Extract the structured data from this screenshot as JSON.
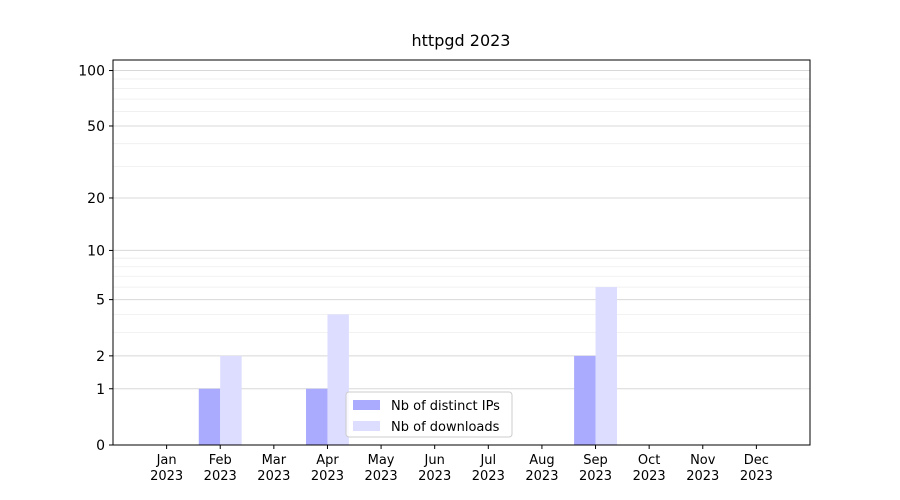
{
  "chart_data": {
    "type": "bar",
    "title": "httpgd 2023",
    "categories": [
      "Jan\n2023",
      "Feb\n2023",
      "Mar\n2023",
      "Apr\n2023",
      "May\n2023",
      "Jun\n2023",
      "Jul\n2023",
      "Aug\n2023",
      "Sep\n2023",
      "Oct\n2023",
      "Nov\n2023",
      "Dec\n2023"
    ],
    "series": [
      {
        "name": "Nb of distinct IPs",
        "color": "#aaaaff",
        "values": [
          0,
          1,
          0,
          1,
          0,
          0,
          0,
          0,
          2,
          0,
          0,
          0
        ]
      },
      {
        "name": "Nb of downloads",
        "color": "#ddddff",
        "values": [
          0,
          2,
          0,
          4,
          0,
          0,
          0,
          0,
          6,
          0,
          0,
          0
        ]
      }
    ],
    "y_scale": "log1p",
    "ylim": [
      0,
      114
    ],
    "yticks": [
      0,
      1,
      2,
      5,
      10,
      20,
      50,
      100
    ],
    "minor_yticks": [
      3,
      4,
      6,
      7,
      8,
      9,
      30,
      40,
      60,
      70,
      80,
      90
    ],
    "grid": true,
    "legend": "lower center"
  }
}
